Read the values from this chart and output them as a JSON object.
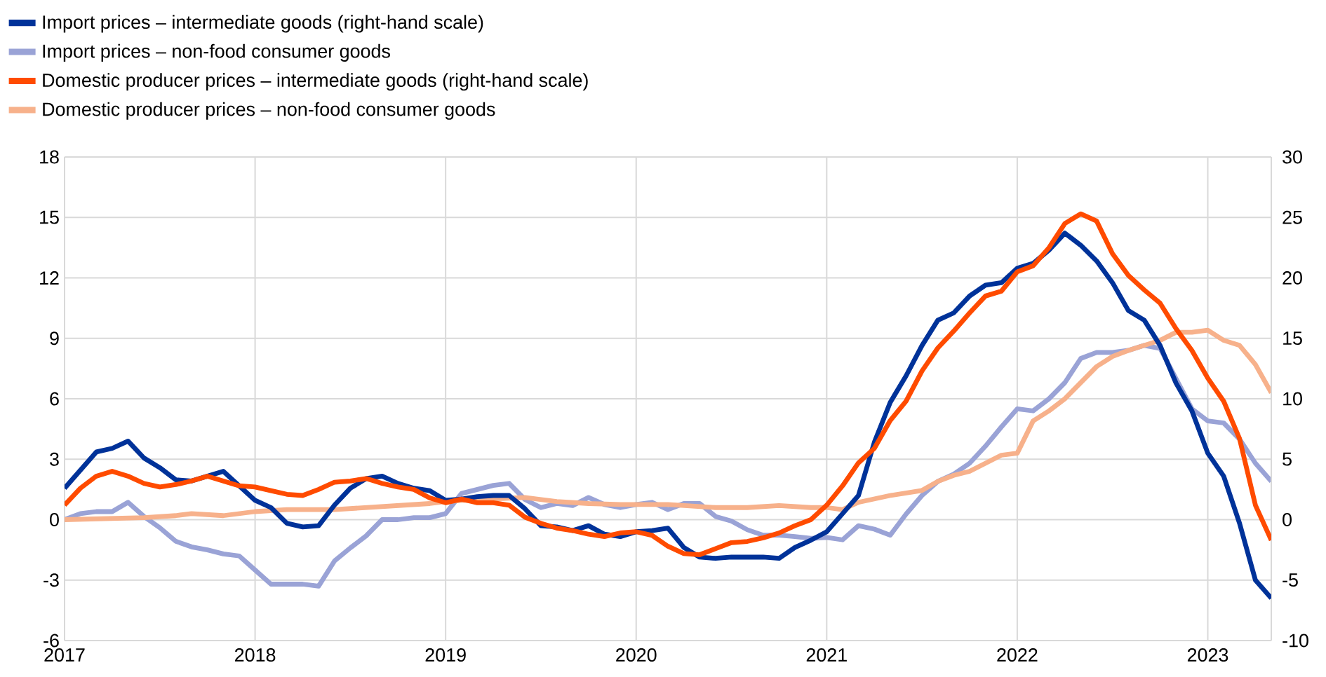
{
  "chart_data": {
    "type": "line",
    "xlim": [
      "2017-01",
      "2023-05"
    ],
    "xticks": [
      "2017",
      "2018",
      "2019",
      "2020",
      "2021",
      "2022",
      "2023"
    ],
    "ylim": [
      -6,
      18
    ],
    "yticks": [
      -6,
      -3,
      0,
      3,
      6,
      9,
      12,
      15,
      18
    ],
    "y2lim": [
      -10,
      30
    ],
    "y2ticks": [
      -10,
      -5,
      0,
      5,
      10,
      15,
      20,
      25,
      30
    ],
    "grid": true,
    "legend": "top left",
    "line_style": "solid",
    "marker": "none",
    "series": [
      {
        "name": "Import prices – intermediate goods (right-hand scale)",
        "color": "#003299",
        "axis": "y2",
        "x": [
          "2017-01",
          "2017-03",
          "2017-04",
          "2017-05",
          "2017-06",
          "2017-07",
          "2017-08",
          "2017-09",
          "2017-10",
          "2017-11",
          "2017-12",
          "2018-01",
          "2018-02",
          "2018-03",
          "2018-04",
          "2018-05",
          "2018-06",
          "2018-07",
          "2018-08",
          "2018-09",
          "2018-10",
          "2018-11",
          "2018-12",
          "2019-01",
          "2019-02",
          "2019-03",
          "2019-04",
          "2019-05",
          "2019-06",
          "2019-07",
          "2019-08",
          "2019-09",
          "2019-10",
          "2019-11",
          "2019-12",
          "2020-01",
          "2020-02",
          "2020-03",
          "2020-04",
          "2020-05",
          "2020-06",
          "2020-07",
          "2020-08",
          "2020-09",
          "2020-10",
          "2020-11",
          "2020-12",
          "2021-01",
          "2021-02",
          "2021-03",
          "2021-04",
          "2021-05",
          "2021-06",
          "2021-07",
          "2021-08",
          "2021-09",
          "2021-10",
          "2021-11",
          "2021-12",
          "2022-01",
          "2022-02",
          "2022-03",
          "2022-04",
          "2022-05",
          "2022-06",
          "2022-07",
          "2022-08",
          "2022-09",
          "2022-10",
          "2022-11",
          "2022-12",
          "2023-01",
          "2023-02",
          "2023-03",
          "2023-04",
          "2023-05"
        ],
        "values": [
          2.6,
          5.6,
          5.9,
          6.5,
          5.1,
          4.3,
          3.3,
          3.2,
          3.6,
          4.0,
          2.8,
          1.6,
          1.0,
          -0.3,
          -0.6,
          -0.5,
          1.2,
          2.6,
          3.4,
          3.6,
          3.0,
          2.6,
          2.4,
          1.6,
          1.7,
          1.9,
          2.0,
          2.0,
          0.9,
          -0.5,
          -0.6,
          -0.9,
          -0.5,
          -1.2,
          -1.4,
          -1.0,
          -0.9,
          -0.7,
          -2.3,
          -3.1,
          -3.2,
          -3.1,
          -3.1,
          -3.1,
          -3.2,
          -2.3,
          -1.7,
          -1.0,
          0.5,
          2.0,
          6.4,
          9.7,
          11.9,
          14.4,
          16.5,
          17.1,
          18.5,
          19.4,
          19.6,
          20.8,
          21.2,
          22.3,
          23.7,
          22.7,
          21.4,
          19.6,
          17.3,
          16.5,
          14.4,
          11.3,
          9.0,
          5.5,
          3.6,
          -0.3,
          -5.0,
          -6.5
        ]
      },
      {
        "name": "Import prices – non-food consumer goods",
        "color": "#9aa3d6",
        "x": [
          "2017-01",
          "2017-02",
          "2017-03",
          "2017-04",
          "2017-05",
          "2017-06",
          "2017-07",
          "2017-08",
          "2017-09",
          "2017-10",
          "2017-11",
          "2017-12",
          "2018-01",
          "2018-02",
          "2018-03",
          "2018-04",
          "2018-05",
          "2018-06",
          "2018-07",
          "2018-08",
          "2018-09",
          "2018-10",
          "2018-11",
          "2018-12",
          "2019-01",
          "2019-02",
          "2019-03",
          "2019-04",
          "2019-05",
          "2019-06",
          "2019-07",
          "2019-08",
          "2019-09",
          "2019-10",
          "2019-11",
          "2019-12",
          "2020-01",
          "2020-02",
          "2020-03",
          "2020-04",
          "2020-05",
          "2020-06",
          "2020-07",
          "2020-08",
          "2020-09",
          "2020-10",
          "2020-11",
          "2020-12",
          "2021-01",
          "2021-02",
          "2021-03",
          "2021-04",
          "2021-05",
          "2021-06",
          "2021-07",
          "2021-08",
          "2021-09",
          "2021-10",
          "2021-11",
          "2021-12",
          "2022-01",
          "2022-02",
          "2022-03",
          "2022-04",
          "2022-05",
          "2022-06",
          "2022-07",
          "2022-08",
          "2022-09",
          "2022-10",
          "2022-11",
          "2022-12",
          "2023-01",
          "2023-02",
          "2023-03",
          "2023-04",
          "2023-05"
        ],
        "values": [
          0,
          0.3,
          0.4,
          0.4,
          0.86,
          0.16,
          -0.4,
          -1.07,
          -1.35,
          -1.5,
          -1.7,
          -1.8,
          -2.5,
          -3.2,
          -3.2,
          -3.2,
          -3.3,
          -2.05,
          -1.4,
          -0.8,
          0,
          0,
          0.1,
          0.1,
          0.3,
          1.3,
          1.5,
          1.7,
          1.8,
          1.0,
          0.6,
          0.8,
          0.7,
          1.1,
          0.75,
          0.6,
          0.75,
          0.86,
          0.5,
          0.8,
          0.8,
          0.16,
          -0.07,
          -0.5,
          -0.77,
          -0.77,
          -0.84,
          -0.93,
          -0.88,
          -1.0,
          -0.3,
          -0.47,
          -0.77,
          0.28,
          1.2,
          1.9,
          2.26,
          2.8,
          3.65,
          4.6,
          5.5,
          5.4,
          6.0,
          6.8,
          8.0,
          8.3,
          8.3,
          8.4,
          8.65,
          8.5,
          7.0,
          5.5,
          4.9,
          4.8,
          4.0,
          2.8,
          1.9
        ]
      },
      {
        "name": "Domestic producer prices – intermediate goods (right-hand scale)",
        "color": "#ff4b00",
        "axis": "y2",
        "x": [
          "2017-01",
          "2017-02",
          "2017-03",
          "2017-04",
          "2017-05",
          "2017-06",
          "2017-07",
          "2017-08",
          "2017-09",
          "2017-10",
          "2017-11",
          "2017-12",
          "2018-01",
          "2018-02",
          "2018-03",
          "2018-04",
          "2018-05",
          "2018-06",
          "2018-07",
          "2018-08",
          "2018-09",
          "2018-10",
          "2018-11",
          "2018-12",
          "2019-01",
          "2019-02",
          "2019-03",
          "2019-04",
          "2019-05",
          "2019-06",
          "2019-07",
          "2019-08",
          "2019-09",
          "2019-10",
          "2019-11",
          "2019-12",
          "2020-01",
          "2020-02",
          "2020-03",
          "2020-04",
          "2020-05",
          "2020-06",
          "2020-07",
          "2020-08",
          "2020-09",
          "2020-10",
          "2020-11",
          "2020-12",
          "2021-01",
          "2021-02",
          "2021-03",
          "2021-04",
          "2021-05",
          "2021-06",
          "2021-07",
          "2021-08",
          "2021-09",
          "2021-10",
          "2021-11",
          "2021-12",
          "2022-01",
          "2022-02",
          "2022-03",
          "2022-04",
          "2022-05",
          "2022-06",
          "2022-07",
          "2022-08",
          "2022-09",
          "2022-10",
          "2022-11",
          "2022-12",
          "2023-01",
          "2023-02",
          "2023-03",
          "2023-04",
          "2023-05"
        ],
        "values": [
          1.2,
          2.6,
          3.6,
          4.0,
          3.6,
          3.0,
          2.7,
          2.9,
          3.2,
          3.6,
          3.2,
          2.8,
          2.7,
          2.4,
          2.1,
          2.0,
          2.5,
          3.1,
          3.2,
          3.4,
          3.0,
          2.7,
          2.5,
          1.8,
          1.4,
          1.7,
          1.4,
          1.4,
          1.2,
          0.2,
          -0.3,
          -0.7,
          -0.9,
          -1.2,
          -1.4,
          -1.1,
          -1.0,
          -1.3,
          -2.2,
          -2.8,
          -2.9,
          -2.4,
          -1.9,
          -1.8,
          -1.5,
          -1.1,
          -0.5,
          0,
          1.2,
          2.8,
          4.7,
          5.9,
          8.2,
          9.8,
          12.3,
          14.2,
          15.6,
          17.1,
          18.5,
          18.9,
          20.5,
          21.0,
          22.5,
          24.5,
          25.3,
          24.7,
          22.0,
          20.2,
          19.0,
          17.9,
          15.8,
          14.0,
          11.7,
          9.8,
          6.7,
          1.2,
          -1.7
        ]
      },
      {
        "name": "Domestic producer prices – non-food consumer goods",
        "color": "#f7b18b",
        "x": [
          "2017-01",
          "2017-06",
          "2017-08",
          "2017-09",
          "2017-11",
          "2018-01",
          "2018-03",
          "2018-06",
          "2018-08",
          "2018-10",
          "2018-12",
          "2019-01",
          "2019-03",
          "2019-06",
          "2019-08",
          "2019-10",
          "2019-12",
          "2020-03",
          "2020-06",
          "2020-08",
          "2020-10",
          "2020-12",
          "2021-01",
          "2021-02",
          "2021-03",
          "2021-05",
          "2021-07",
          "2021-08",
          "2021-09",
          "2021-10",
          "2021-11",
          "2021-12",
          "2022-01",
          "2022-02",
          "2022-03",
          "2022-04",
          "2022-05",
          "2022-06",
          "2022-07",
          "2022-08",
          "2022-09",
          "2022-10",
          "2022-11",
          "2022-12",
          "2023-01",
          "2023-02",
          "2023-03",
          "2023-04",
          "2023-05"
        ],
        "values": [
          0,
          0.1,
          0.2,
          0.3,
          0.2,
          0.4,
          0.5,
          0.5,
          0.6,
          0.7,
          0.8,
          0.9,
          1.0,
          1.1,
          0.9,
          0.8,
          0.75,
          0.75,
          0.6,
          0.6,
          0.7,
          0.6,
          0.6,
          0.5,
          0.86,
          1.2,
          1.45,
          1.9,
          2.2,
          2.4,
          2.8,
          3.2,
          3.3,
          4.9,
          5.4,
          6.0,
          6.8,
          7.6,
          8.1,
          8.4,
          8.65,
          8.9,
          9.3,
          9.3,
          9.4,
          8.9,
          8.65,
          7.7,
          6.3
        ]
      }
    ]
  }
}
